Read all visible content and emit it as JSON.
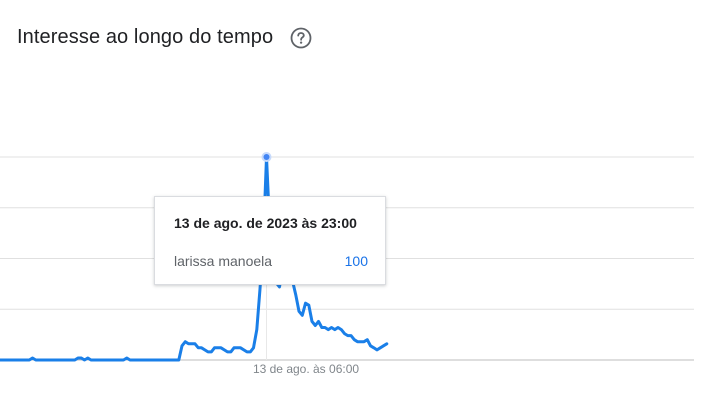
{
  "header": {
    "title": "Interesse ao longo do tempo",
    "help_icon": "help-circle-icon"
  },
  "tooltip": {
    "date": "13 de ago. de 2023 às 23:00",
    "term": "larissa manoela",
    "value": "100"
  },
  "colors": {
    "line": "#1a7fe8",
    "grid": "#e0e0e0",
    "axis": "#bdbdbd",
    "text": "#202124",
    "muted": "#80868b"
  },
  "chart_data": {
    "type": "line",
    "title": "Interesse ao longo do tempo",
    "ylim": [
      0,
      100
    ],
    "grid": true,
    "x_tick_labels": [
      "13 de ago. às 06:00"
    ],
    "series": [
      {
        "name": "larissa manoela",
        "values": [
          0,
          0,
          0,
          0,
          0,
          0,
          0,
          0,
          0,
          0,
          1,
          0,
          0,
          0,
          0,
          0,
          0,
          0,
          0,
          0,
          0,
          0,
          0,
          0,
          1,
          1,
          0,
          1,
          0,
          0,
          0,
          0,
          0,
          0,
          0,
          0,
          0,
          0,
          0,
          1,
          0,
          0,
          0,
          0,
          0,
          0,
          0,
          0,
          0,
          0,
          0,
          0,
          0,
          0,
          0,
          0,
          7,
          9,
          8,
          8,
          8,
          6,
          6,
          5,
          4,
          4,
          6,
          6,
          6,
          5,
          4,
          4,
          6,
          6,
          6,
          5,
          4,
          4,
          6,
          15,
          35,
          58,
          100,
          64,
          41,
          38,
          36,
          45,
          52,
          51,
          39,
          32,
          24,
          22,
          28,
          27,
          19,
          17,
          19,
          16,
          16,
          15,
          16,
          15,
          16,
          15,
          13,
          12,
          12,
          10,
          9,
          9,
          9,
          10,
          7,
          6,
          5,
          6,
          7,
          8
        ]
      }
    ],
    "highlight": {
      "index": 82,
      "label": "13 de ago. de 2023 às 23:00",
      "value": 100
    }
  }
}
